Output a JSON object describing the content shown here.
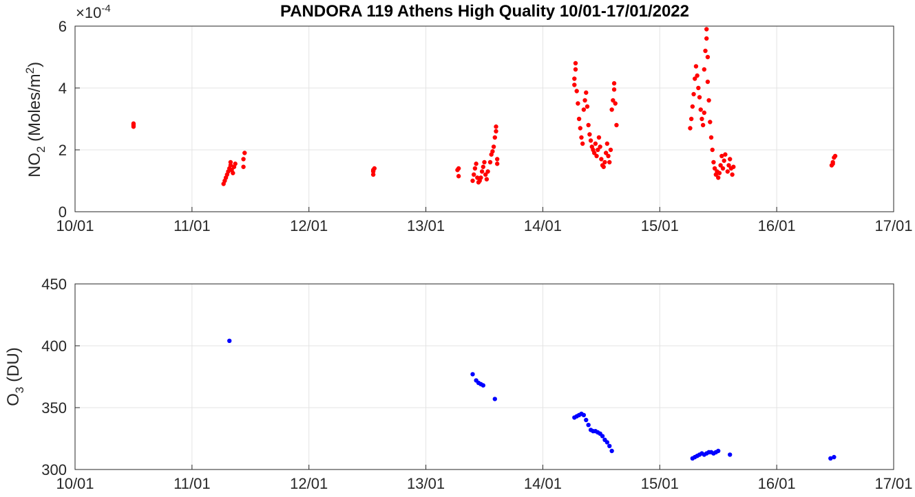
{
  "chart_data": {
    "title": "PANDORA 119 Athens High Quality 10/01-17/01/2022",
    "x_axis": {
      "ticks": [
        "10/01",
        "11/01",
        "12/01",
        "13/01",
        "14/01",
        "15/01",
        "16/01",
        "17/01"
      ],
      "xlim": [
        "10/01/2022",
        "17/01/2022"
      ],
      "grid": true
    },
    "panels": [
      {
        "type": "scatter",
        "ylabel_main": "NO",
        "ylabel_sub": "2",
        "ylabel_rest": " (Moles/m",
        "ylabel_sup": "2",
        "ylabel_end": ")",
        "exponent_base": "×10",
        "exponent_power": "-4",
        "ylim": [
          0,
          6
        ],
        "yticks": [
          "0",
          "2",
          "4",
          "6"
        ],
        "marker_color": "#ff0000",
        "points": [
          [
            0.5,
            2.75
          ],
          [
            0.5,
            2.8
          ],
          [
            0.5,
            2.85
          ],
          [
            1.27,
            0.9
          ],
          [
            1.28,
            1.0
          ],
          [
            1.29,
            1.1
          ],
          [
            1.3,
            1.2
          ],
          [
            1.31,
            1.3
          ],
          [
            1.32,
            1.4
          ],
          [
            1.33,
            1.5
          ],
          [
            1.33,
            1.6
          ],
          [
            1.34,
            1.35
          ],
          [
            1.35,
            1.25
          ],
          [
            1.36,
            1.45
          ],
          [
            1.37,
            1.55
          ],
          [
            1.44,
            1.45
          ],
          [
            1.44,
            1.7
          ],
          [
            1.45,
            1.9
          ],
          [
            2.55,
            1.2
          ],
          [
            2.55,
            1.3
          ],
          [
            2.56,
            1.4
          ],
          [
            2.55,
            1.35
          ],
          [
            3.27,
            1.35
          ],
          [
            3.28,
            1.4
          ],
          [
            3.28,
            1.15
          ],
          [
            3.4,
            1.0
          ],
          [
            3.41,
            1.2
          ],
          [
            3.42,
            1.4
          ],
          [
            3.43,
            1.55
          ],
          [
            3.44,
            1.1
          ],
          [
            3.45,
            0.95
          ],
          [
            3.46,
            1.0
          ],
          [
            3.47,
            1.1
          ],
          [
            3.48,
            1.3
          ],
          [
            3.49,
            1.45
          ],
          [
            3.5,
            1.6
          ],
          [
            3.51,
            1.2
          ],
          [
            3.52,
            1.05
          ],
          [
            3.53,
            1.3
          ],
          [
            3.55,
            1.6
          ],
          [
            3.56,
            1.85
          ],
          [
            3.57,
            1.95
          ],
          [
            3.58,
            2.1
          ],
          [
            3.59,
            2.4
          ],
          [
            3.6,
            2.6
          ],
          [
            3.6,
            2.75
          ],
          [
            3.61,
            1.7
          ],
          [
            3.61,
            1.55
          ],
          [
            4.27,
            4.1
          ],
          [
            4.27,
            4.3
          ],
          [
            4.28,
            4.8
          ],
          [
            4.28,
            4.6
          ],
          [
            4.29,
            3.9
          ],
          [
            4.3,
            3.5
          ],
          [
            4.31,
            3.0
          ],
          [
            4.32,
            2.7
          ],
          [
            4.33,
            2.4
          ],
          [
            4.34,
            2.2
          ],
          [
            4.35,
            3.3
          ],
          [
            4.36,
            3.6
          ],
          [
            4.37,
            3.85
          ],
          [
            4.38,
            3.4
          ],
          [
            4.39,
            2.8
          ],
          [
            4.4,
            2.5
          ],
          [
            4.41,
            2.3
          ],
          [
            4.42,
            2.1
          ],
          [
            4.43,
            2.0
          ],
          [
            4.44,
            1.9
          ],
          [
            4.45,
            2.2
          ],
          [
            4.46,
            1.8
          ],
          [
            4.47,
            2.0
          ],
          [
            4.48,
            2.4
          ],
          [
            4.49,
            2.1
          ],
          [
            4.5,
            1.7
          ],
          [
            4.51,
            1.5
          ],
          [
            4.52,
            1.45
          ],
          [
            4.53,
            1.6
          ],
          [
            4.54,
            1.9
          ],
          [
            4.55,
            2.2
          ],
          [
            4.56,
            1.8
          ],
          [
            4.57,
            1.6
          ],
          [
            4.58,
            2.0
          ],
          [
            4.59,
            3.3
          ],
          [
            4.6,
            3.6
          ],
          [
            4.61,
            3.95
          ],
          [
            4.61,
            4.15
          ],
          [
            4.62,
            3.5
          ],
          [
            4.63,
            2.8
          ],
          [
            5.26,
            2.7
          ],
          [
            5.27,
            3.0
          ],
          [
            5.28,
            3.4
          ],
          [
            5.29,
            3.8
          ],
          [
            5.3,
            4.3
          ],
          [
            5.31,
            4.7
          ],
          [
            5.32,
            4.4
          ],
          [
            5.33,
            4.0
          ],
          [
            5.34,
            3.7
          ],
          [
            5.35,
            3.3
          ],
          [
            5.36,
            3.0
          ],
          [
            5.37,
            2.8
          ],
          [
            5.38,
            3.2
          ],
          [
            5.38,
            4.6
          ],
          [
            5.39,
            5.2
          ],
          [
            5.4,
            5.9
          ],
          [
            5.4,
            5.6
          ],
          [
            5.41,
            5.0
          ],
          [
            5.41,
            4.2
          ],
          [
            5.42,
            3.6
          ],
          [
            5.43,
            2.9
          ],
          [
            5.44,
            2.4
          ],
          [
            5.45,
            2.0
          ],
          [
            5.46,
            1.6
          ],
          [
            5.47,
            1.4
          ],
          [
            5.48,
            1.2
          ],
          [
            5.49,
            1.3
          ],
          [
            5.5,
            1.1
          ],
          [
            5.51,
            1.25
          ],
          [
            5.52,
            1.5
          ],
          [
            5.53,
            1.8
          ],
          [
            5.54,
            1.4
          ],
          [
            5.55,
            1.65
          ],
          [
            5.56,
            1.85
          ],
          [
            5.58,
            1.3
          ],
          [
            5.59,
            1.5
          ],
          [
            5.6,
            1.7
          ],
          [
            5.61,
            1.4
          ],
          [
            5.62,
            1.2
          ],
          [
            5.63,
            1.45
          ],
          [
            6.47,
            1.5
          ],
          [
            6.48,
            1.6
          ],
          [
            6.49,
            1.75
          ],
          [
            6.5,
            1.8
          ],
          [
            6.48,
            1.55
          ]
        ]
      },
      {
        "type": "scatter",
        "ylabel_main": "O",
        "ylabel_sub": "3",
        "ylabel_rest": " (DU)",
        "ylim": [
          300,
          450
        ],
        "yticks": [
          "300",
          "350",
          "400",
          "450"
        ],
        "marker_color": "#0000ff",
        "points": [
          [
            1.32,
            404
          ],
          [
            3.4,
            377
          ],
          [
            3.43,
            372
          ],
          [
            3.45,
            370
          ],
          [
            3.47,
            369
          ],
          [
            3.49,
            368
          ],
          [
            3.59,
            357
          ],
          [
            4.27,
            342
          ],
          [
            4.29,
            343
          ],
          [
            4.31,
            344
          ],
          [
            4.33,
            345
          ],
          [
            4.35,
            344
          ],
          [
            4.37,
            340
          ],
          [
            4.39,
            336
          ],
          [
            4.41,
            332
          ],
          [
            4.43,
            331
          ],
          [
            4.45,
            331
          ],
          [
            4.47,
            330
          ],
          [
            4.49,
            329
          ],
          [
            4.51,
            327
          ],
          [
            4.53,
            324
          ],
          [
            4.55,
            322
          ],
          [
            4.57,
            319
          ],
          [
            4.59,
            315
          ],
          [
            5.28,
            309
          ],
          [
            5.3,
            310
          ],
          [
            5.32,
            311
          ],
          [
            5.34,
            312
          ],
          [
            5.36,
            313
          ],
          [
            5.38,
            312
          ],
          [
            5.4,
            313
          ],
          [
            5.42,
            314
          ],
          [
            5.44,
            314
          ],
          [
            5.46,
            313
          ],
          [
            5.48,
            314
          ],
          [
            5.5,
            315
          ],
          [
            5.6,
            312
          ],
          [
            6.46,
            309
          ],
          [
            6.49,
            310
          ]
        ]
      }
    ]
  }
}
